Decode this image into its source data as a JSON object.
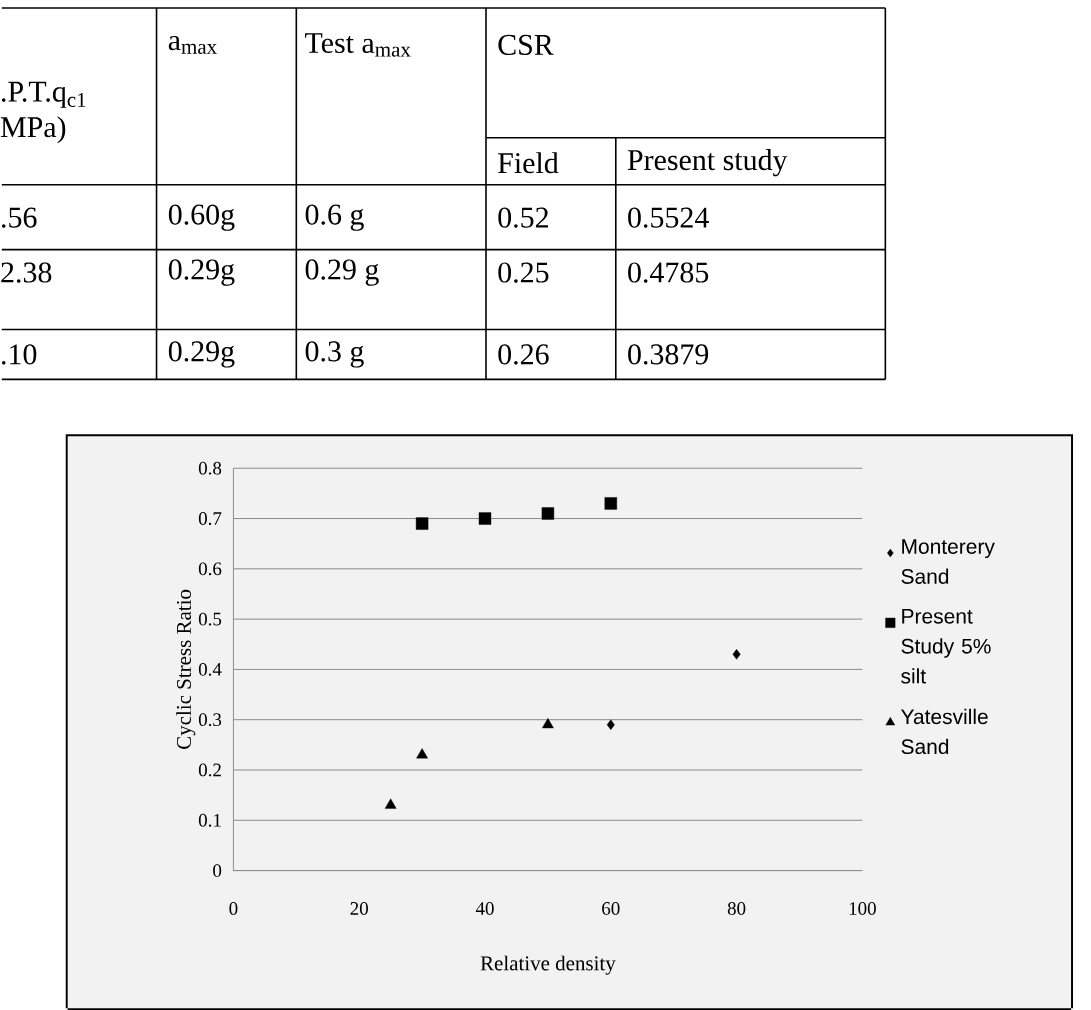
{
  "chart_data": [
    {
      "type": "other",
      "annotations": [
        ".P.T.q$_{c1}$",
        "MPa)",
        "a$_{max}$",
        "Test a$_{max}$",
        "CSR",
        "Field",
        "Present study",
        ".56",
        "0.60g",
        "0.6 g",
        "0.52",
        "0.5524",
        "2.38",
        "0.29g",
        "0.29 g",
        "0.25",
        "0.4785",
        ".10",
        "0.29g",
        "0.3 g",
        "0.26",
        "0.3879"
      ]
    },
    {
      "type": "scatter",
      "xlabel": "Relative density",
      "ylabel": "Cyclic Stress Ratio",
      "xlim": [
        0,
        100
      ],
      "xticks": [
        0,
        20,
        40,
        60,
        80,
        100
      ],
      "ylim": [
        0,
        0.8
      ],
      "yticks": [
        0,
        0.1,
        0.2,
        0.3,
        0.4,
        0.5,
        0.6,
        0.7,
        0.8
      ],
      "grid": "y",
      "legend": "right",
      "series": [
        {
          "name": "Monterery Sand",
          "color": "#000000",
          "marker": "diamond",
          "x": [
            60,
            80
          ],
          "values": [
            0.29,
            0.43
          ]
        },
        {
          "name": "Present Study 5% silt",
          "color": "#000000",
          "marker": "square",
          "x": [
            30,
            40,
            50,
            60
          ],
          "values": [
            0.69,
            0.7,
            0.71,
            0.73
          ]
        },
        {
          "name": "Yatesville Sand",
          "color": "#000000",
          "marker": "triangle",
          "x": [
            25,
            30,
            50
          ],
          "values": [
            0.13,
            0.23,
            0.29
          ]
        }
      ]
    }
  ]
}
